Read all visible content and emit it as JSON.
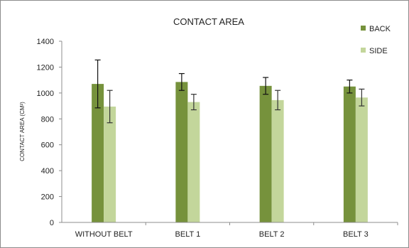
{
  "chart_data": {
    "type": "bar",
    "title": "CONTACT AREA",
    "xlabel": "",
    "ylabel": "CONTACT AREA (CM²)",
    "categories": [
      "WITHOUT BELT",
      "BELT 1",
      "BELT 2",
      "BELT 3"
    ],
    "ylim": [
      0,
      1400
    ],
    "yticks": [
      0,
      200,
      400,
      600,
      800,
      1000,
      1200,
      1400
    ],
    "grid": false,
    "legend_position": "right",
    "series": [
      {
        "name": "BACK",
        "color": "#76923c",
        "values": [
          1070,
          1085,
          1055,
          1050
        ],
        "error": [
          185,
          65,
          65,
          50
        ]
      },
      {
        "name": "SIDE",
        "color": "#c3d69b",
        "values": [
          895,
          930,
          945,
          965
        ],
        "error": [
          125,
          60,
          75,
          65
        ]
      }
    ]
  }
}
